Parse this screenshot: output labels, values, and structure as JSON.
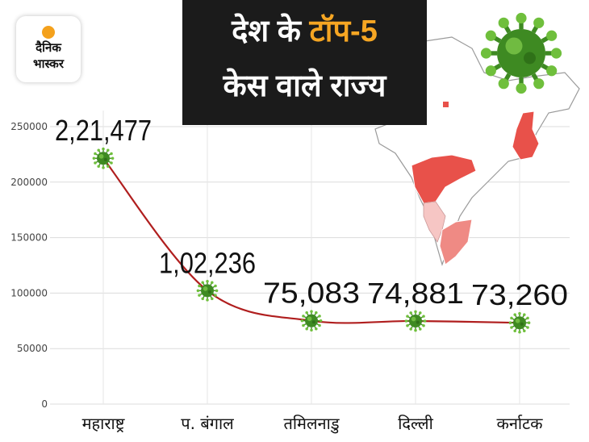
{
  "logo": {
    "line1": "दैनिक",
    "line2": "भास्कर"
  },
  "title": {
    "line1_pre": "देश के ",
    "line1_accent": "टॉप-5",
    "line2": "केस वाले राज्य"
  },
  "colors": {
    "accent": "#f6a623",
    "title_bg": "#1b1b1b",
    "line": "#b01e1e",
    "marker": "#3e8a22",
    "map_highlight": "#e8514a",
    "map_light": "#f6b3b0"
  },
  "chart_data": {
    "type": "line",
    "categories": [
      "महाराष्ट्र",
      "प. बंगाल",
      "तमिलनाडु",
      "दिल्ली",
      "कर्नाटक"
    ],
    "values": [
      221477,
      102236,
      75083,
      74881,
      73260
    ],
    "value_labels": [
      "2,21,477",
      "1,02,236",
      "75,083",
      "74,881",
      "73,260"
    ],
    "yticks": [
      "0",
      "50000",
      "100000",
      "150000",
      "200000",
      "250000"
    ],
    "ylim": [
      0,
      250000
    ],
    "grid": true,
    "marker_icon": "coronavirus-icon"
  }
}
